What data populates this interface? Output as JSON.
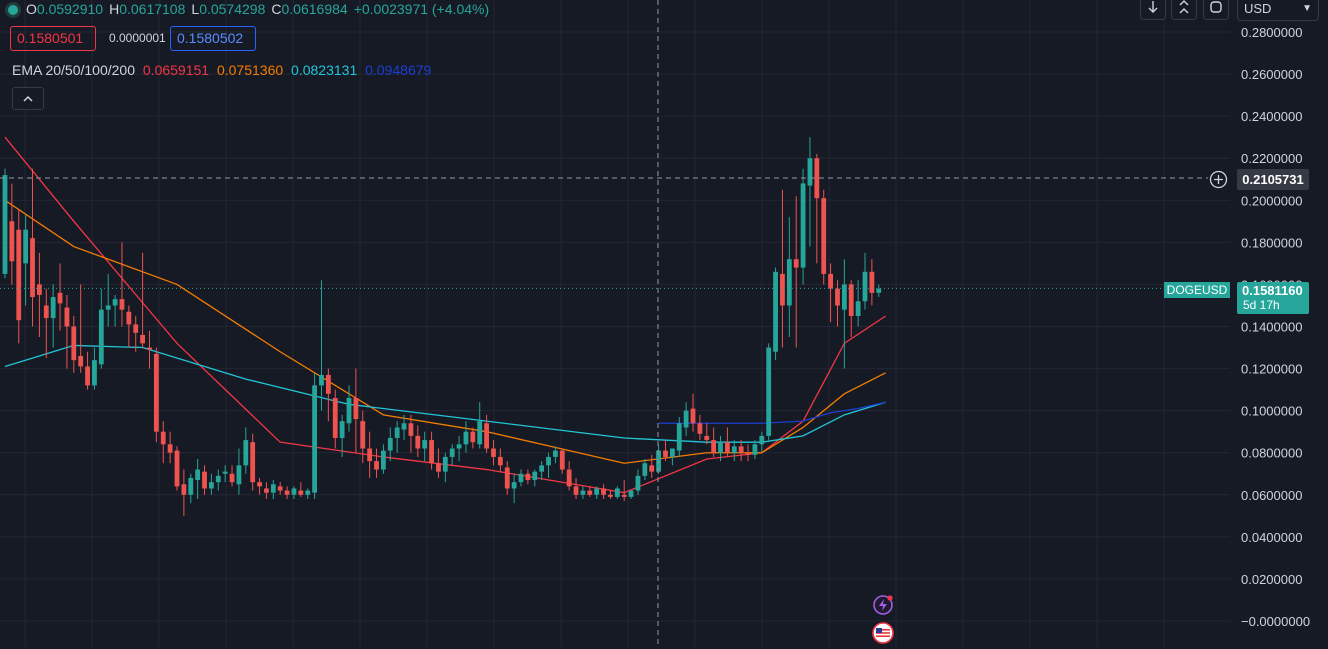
{
  "legend": {
    "status_dot_color": "#26a69a",
    "open_label": "O",
    "open_value": "0.0592910",
    "high_label": "H",
    "high_value": "0.0617108",
    "low_label": "L",
    "low_value": "0.0574298",
    "close_label": "C",
    "close_value": "0.0616984",
    "change_value": "+0.0023971 (+4.04%)"
  },
  "quote": {
    "sell_price": "0.1580501",
    "spread": "0.0000001",
    "buy_price": "0.1580502"
  },
  "ema_legend": {
    "label": "EMA 20/50/100/200",
    "ema20_value": "0.0659151",
    "ema20_color": "#f23645",
    "ema50_value": "0.0751360",
    "ema50_color": "#f57c00",
    "ema100_value": "0.0823131",
    "ema100_color": "#21c6d8",
    "ema200_value": "0.0948679",
    "ema200_color": "#1b3fd1"
  },
  "toolbar": {
    "download_icon": "arrow-down-icon",
    "collapse_icon": "double-chevron-icon",
    "layout_icon": "fullscreen-icon",
    "currency": "USD"
  },
  "crosshair": {
    "price_label": "0.2105731"
  },
  "symbol": {
    "name": "DOGEUSD",
    "last_price": "0.1581160",
    "countdown": "5d 17h"
  },
  "events": [
    "lightning-event-icon",
    "us-flag-event-icon"
  ],
  "colors": {
    "bull": "#26a69a",
    "bear": "#ef5350",
    "background": "#161a25",
    "grid": "#242733"
  },
  "chart_data": {
    "type": "candlestick",
    "title": "",
    "symbol": "DOGEUSD",
    "currency": "USD",
    "y_ticks": [
      "0.2800000",
      "0.2600000",
      "0.2400000",
      "0.2200000",
      "0.2000000",
      "0.1800000",
      "0.1600000",
      "0.1400000",
      "0.1200000",
      "0.1000000",
      "0.0800000",
      "0.0600000",
      "0.0400000",
      "0.0200000",
      "−0.0000000"
    ],
    "ylim": [
      -0.002,
      0.29
    ],
    "grid": true,
    "legend_placement": "top-left",
    "last_price": 0.158116,
    "crosshair_price": 0.2105731,
    "candles": [
      [
        0.165,
        0.215,
        0.163,
        0.212
      ],
      [
        0.19,
        0.208,
        0.16,
        0.171
      ],
      [
        0.186,
        0.196,
        0.132,
        0.143
      ],
      [
        0.17,
        0.193,
        0.15,
        0.186
      ],
      [
        0.182,
        0.215,
        0.14,
        0.154
      ],
      [
        0.16,
        0.175,
        0.135,
        0.155
      ],
      [
        0.15,
        0.158,
        0.125,
        0.144
      ],
      [
        0.144,
        0.16,
        0.13,
        0.154
      ],
      [
        0.156,
        0.17,
        0.138,
        0.151
      ],
      [
        0.149,
        0.155,
        0.12,
        0.14
      ],
      [
        0.14,
        0.145,
        0.118,
        0.124
      ],
      [
        0.126,
        0.16,
        0.118,
        0.121
      ],
      [
        0.121,
        0.128,
        0.11,
        0.112
      ],
      [
        0.112,
        0.13,
        0.11,
        0.124
      ],
      [
        0.122,
        0.158,
        0.12,
        0.148
      ],
      [
        0.148,
        0.165,
        0.14,
        0.15
      ],
      [
        0.15,
        0.155,
        0.14,
        0.153
      ],
      [
        0.153,
        0.18,
        0.14,
        0.148
      ],
      [
        0.147,
        0.15,
        0.13,
        0.141
      ],
      [
        0.141,
        0.145,
        0.128,
        0.137
      ],
      [
        0.136,
        0.175,
        0.13,
        0.132
      ],
      [
        0.13,
        0.138,
        0.12,
        0.129
      ],
      [
        0.127,
        0.13,
        0.085,
        0.09
      ],
      [
        0.09,
        0.095,
        0.075,
        0.084
      ],
      [
        0.084,
        0.09,
        0.075,
        0.08
      ],
      [
        0.081,
        0.083,
        0.062,
        0.064
      ],
      [
        0.065,
        0.072,
        0.05,
        0.06
      ],
      [
        0.06,
        0.07,
        0.056,
        0.068
      ],
      [
        0.067,
        0.077,
        0.058,
        0.072
      ],
      [
        0.071,
        0.074,
        0.06,
        0.063
      ],
      [
        0.063,
        0.07,
        0.06,
        0.066
      ],
      [
        0.066,
        0.072,
        0.062,
        0.069
      ],
      [
        0.07,
        0.074,
        0.066,
        0.071
      ],
      [
        0.07,
        0.074,
        0.064,
        0.066
      ],
      [
        0.065,
        0.082,
        0.06,
        0.074
      ],
      [
        0.074,
        0.092,
        0.07,
        0.086
      ],
      [
        0.085,
        0.089,
        0.062,
        0.066
      ],
      [
        0.066,
        0.068,
        0.06,
        0.064
      ],
      [
        0.063,
        0.066,
        0.058,
        0.061
      ],
      [
        0.061,
        0.067,
        0.058,
        0.065
      ],
      [
        0.064,
        0.066,
        0.06,
        0.062
      ],
      [
        0.062,
        0.064,
        0.058,
        0.06
      ],
      [
        0.06,
        0.064,
        0.058,
        0.063
      ],
      [
        0.062,
        0.066,
        0.059,
        0.06
      ],
      [
        0.06,
        0.063,
        0.058,
        0.062
      ],
      [
        0.061,
        0.118,
        0.058,
        0.112
      ],
      [
        0.112,
        0.162,
        0.1,
        0.117
      ],
      [
        0.117,
        0.12,
        0.095,
        0.108
      ],
      [
        0.106,
        0.11,
        0.082,
        0.087
      ],
      [
        0.087,
        0.098,
        0.078,
        0.095
      ],
      [
        0.094,
        0.112,
        0.09,
        0.106
      ],
      [
        0.106,
        0.12,
        0.08,
        0.096
      ],
      [
        0.095,
        0.1,
        0.075,
        0.082
      ],
      [
        0.082,
        0.09,
        0.068,
        0.076
      ],
      [
        0.076,
        0.082,
        0.068,
        0.072
      ],
      [
        0.072,
        0.084,
        0.07,
        0.081
      ],
      [
        0.081,
        0.092,
        0.076,
        0.087
      ],
      [
        0.087,
        0.095,
        0.08,
        0.092
      ],
      [
        0.091,
        0.098,
        0.086,
        0.094
      ],
      [
        0.094,
        0.098,
        0.08,
        0.088
      ],
      [
        0.088,
        0.093,
        0.078,
        0.082
      ],
      [
        0.082,
        0.09,
        0.076,
        0.086
      ],
      [
        0.086,
        0.09,
        0.072,
        0.075
      ],
      [
        0.075,
        0.082,
        0.068,
        0.071
      ],
      [
        0.071,
        0.08,
        0.066,
        0.078
      ],
      [
        0.078,
        0.084,
        0.074,
        0.082
      ],
      [
        0.082,
        0.088,
        0.076,
        0.084
      ],
      [
        0.084,
        0.095,
        0.08,
        0.09
      ],
      [
        0.09,
        0.092,
        0.082,
        0.085
      ],
      [
        0.084,
        0.104,
        0.082,
        0.095
      ],
      [
        0.094,
        0.098,
        0.08,
        0.082
      ],
      [
        0.082,
        0.086,
        0.074,
        0.078
      ],
      [
        0.078,
        0.082,
        0.071,
        0.074
      ],
      [
        0.073,
        0.076,
        0.06,
        0.063
      ],
      [
        0.063,
        0.07,
        0.056,
        0.066
      ],
      [
        0.066,
        0.072,
        0.064,
        0.07
      ],
      [
        0.07,
        0.072,
        0.065,
        0.067
      ],
      [
        0.067,
        0.072,
        0.064,
        0.071
      ],
      [
        0.071,
        0.076,
        0.067,
        0.074
      ],
      [
        0.074,
        0.08,
        0.068,
        0.078
      ],
      [
        0.078,
        0.083,
        0.075,
        0.081
      ],
      [
        0.081,
        0.082,
        0.07,
        0.072
      ],
      [
        0.072,
        0.076,
        0.062,
        0.064
      ],
      [
        0.064,
        0.068,
        0.058,
        0.06
      ],
      [
        0.06,
        0.064,
        0.058,
        0.062
      ],
      [
        0.062,
        0.064,
        0.059,
        0.06
      ],
      [
        0.06,
        0.064,
        0.058,
        0.063
      ],
      [
        0.063,
        0.065,
        0.058,
        0.06
      ],
      [
        0.06,
        0.062,
        0.058,
        0.059
      ],
      [
        0.059,
        0.064,
        0.058,
        0.063
      ],
      [
        0.06,
        0.067,
        0.057,
        0.059
      ],
      [
        0.059,
        0.062,
        0.058,
        0.062
      ],
      [
        0.062,
        0.072,
        0.06,
        0.069
      ],
      [
        0.069,
        0.077,
        0.067,
        0.075
      ],
      [
        0.074,
        0.079,
        0.068,
        0.071
      ],
      [
        0.071,
        0.084,
        0.07,
        0.081
      ],
      [
        0.081,
        0.086,
        0.076,
        0.078
      ],
      [
        0.078,
        0.082,
        0.074,
        0.082
      ],
      [
        0.081,
        0.097,
        0.078,
        0.094
      ],
      [
        0.092,
        0.104,
        0.088,
        0.1
      ],
      [
        0.101,
        0.108,
        0.09,
        0.094
      ],
      [
        0.094,
        0.098,
        0.086,
        0.089
      ],
      [
        0.088,
        0.094,
        0.084,
        0.086
      ],
      [
        0.086,
        0.092,
        0.078,
        0.08
      ],
      [
        0.08,
        0.088,
        0.076,
        0.085
      ],
      [
        0.085,
        0.092,
        0.078,
        0.08
      ],
      [
        0.08,
        0.086,
        0.076,
        0.083
      ],
      [
        0.083,
        0.086,
        0.076,
        0.08
      ],
      [
        0.08,
        0.084,
        0.076,
        0.079
      ],
      [
        0.079,
        0.086,
        0.077,
        0.084
      ],
      [
        0.084,
        0.09,
        0.08,
        0.088
      ],
      [
        0.088,
        0.132,
        0.085,
        0.13
      ],
      [
        0.128,
        0.168,
        0.124,
        0.166
      ],
      [
        0.165,
        0.205,
        0.13,
        0.15
      ],
      [
        0.15,
        0.192,
        0.135,
        0.172
      ],
      [
        0.172,
        0.202,
        0.13,
        0.168
      ],
      [
        0.168,
        0.215,
        0.16,
        0.208
      ],
      [
        0.207,
        0.23,
        0.178,
        0.22
      ],
      [
        0.22,
        0.222,
        0.17,
        0.201
      ],
      [
        0.201,
        0.205,
        0.16,
        0.165
      ],
      [
        0.165,
        0.17,
        0.142,
        0.158
      ],
      [
        0.158,
        0.162,
        0.14,
        0.15
      ],
      [
        0.148,
        0.172,
        0.12,
        0.16
      ],
      [
        0.16,
        0.162,
        0.135,
        0.145
      ],
      [
        0.145,
        0.162,
        0.14,
        0.152
      ],
      [
        0.152,
        0.175,
        0.148,
        0.166
      ],
      [
        0.166,
        0.172,
        0.15,
        0.156
      ],
      [
        0.156,
        0.16,
        0.154,
        0.158
      ]
    ],
    "ema_series": [
      {
        "name": "EMA 20",
        "color": "#f23645",
        "values": [
          [
            0,
            0.23
          ],
          [
            10,
            0.19
          ],
          [
            25,
            0.132
          ],
          [
            40,
            0.085
          ],
          [
            55,
            0.078
          ],
          [
            70,
            0.072
          ],
          [
            90,
            0.061
          ],
          [
            102,
            0.077
          ],
          [
            110,
            0.08
          ],
          [
            116,
            0.095
          ],
          [
            122,
            0.132
          ],
          [
            128,
            0.145
          ]
        ]
      },
      {
        "name": "EMA 50",
        "color": "#f57c00",
        "values": [
          [
            0,
            0.2
          ],
          [
            10,
            0.178
          ],
          [
            25,
            0.16
          ],
          [
            40,
            0.128
          ],
          [
            55,
            0.098
          ],
          [
            70,
            0.09
          ],
          [
            90,
            0.075
          ],
          [
            102,
            0.08
          ],
          [
            110,
            0.08
          ],
          [
            116,
            0.092
          ],
          [
            122,
            0.108
          ],
          [
            128,
            0.118
          ]
        ]
      },
      {
        "name": "EMA 100",
        "color": "#21c6d8",
        "values": [
          [
            0,
            0.121
          ],
          [
            10,
            0.131
          ],
          [
            20,
            0.13
          ],
          [
            35,
            0.115
          ],
          [
            50,
            0.103
          ],
          [
            70,
            0.095
          ],
          [
            90,
            0.087
          ],
          [
            102,
            0.085
          ],
          [
            110,
            0.085
          ],
          [
            116,
            0.088
          ],
          [
            122,
            0.098
          ],
          [
            128,
            0.104
          ]
        ]
      },
      {
        "name": "EMA 200",
        "color": "#1b3fd1",
        "values": [
          [
            95,
            0.094
          ],
          [
            110,
            0.094
          ],
          [
            116,
            0.095
          ],
          [
            120,
            0.099
          ],
          [
            124,
            0.101
          ],
          [
            128,
            0.104
          ]
        ]
      }
    ]
  }
}
